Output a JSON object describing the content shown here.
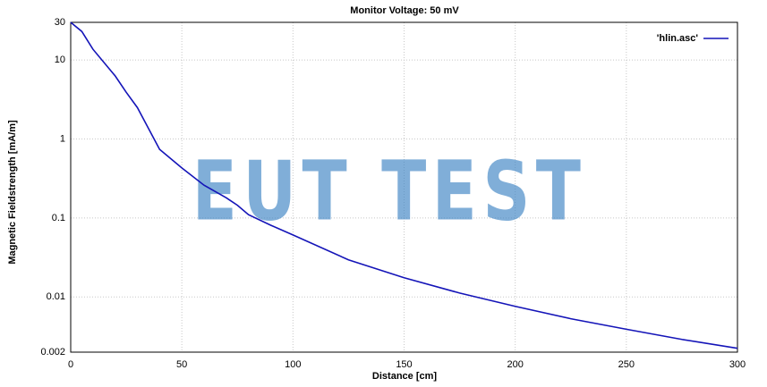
{
  "chart_data": {
    "type": "line",
    "title": "Monitor Voltage: 50 mV",
    "x_label": "Distance [cm]",
    "y_label": "Magnetic Fieldstrength [mA/m]",
    "watermark": "EUT TEST",
    "x": [
      0,
      5,
      10,
      20,
      25,
      30,
      40,
      50,
      60,
      70,
      75,
      80,
      90,
      100,
      125,
      150,
      175,
      200,
      225,
      250,
      275,
      300
    ],
    "series": [
      {
        "name": "'hlin.asc'",
        "color": "#1414b8",
        "values": [
          30,
          23,
          13.7,
          6.3,
          3.9,
          2.5,
          0.74,
          0.43,
          0.26,
          0.18,
          0.145,
          0.11,
          0.081,
          0.061,
          0.0295,
          0.0175,
          0.0112,
          0.0076,
          0.0053,
          0.0039,
          0.0029,
          0.00224
        ]
      }
    ],
    "xlim": [
      0,
      300
    ],
    "xticks": [
      0,
      50,
      100,
      150,
      200,
      250,
      300
    ],
    "ylim": [
      0.002,
      30
    ],
    "yticks": [
      0.002,
      0.01,
      0.1,
      1,
      10,
      30
    ],
    "y_scale": "log",
    "grid": true,
    "legend": "top-right"
  }
}
